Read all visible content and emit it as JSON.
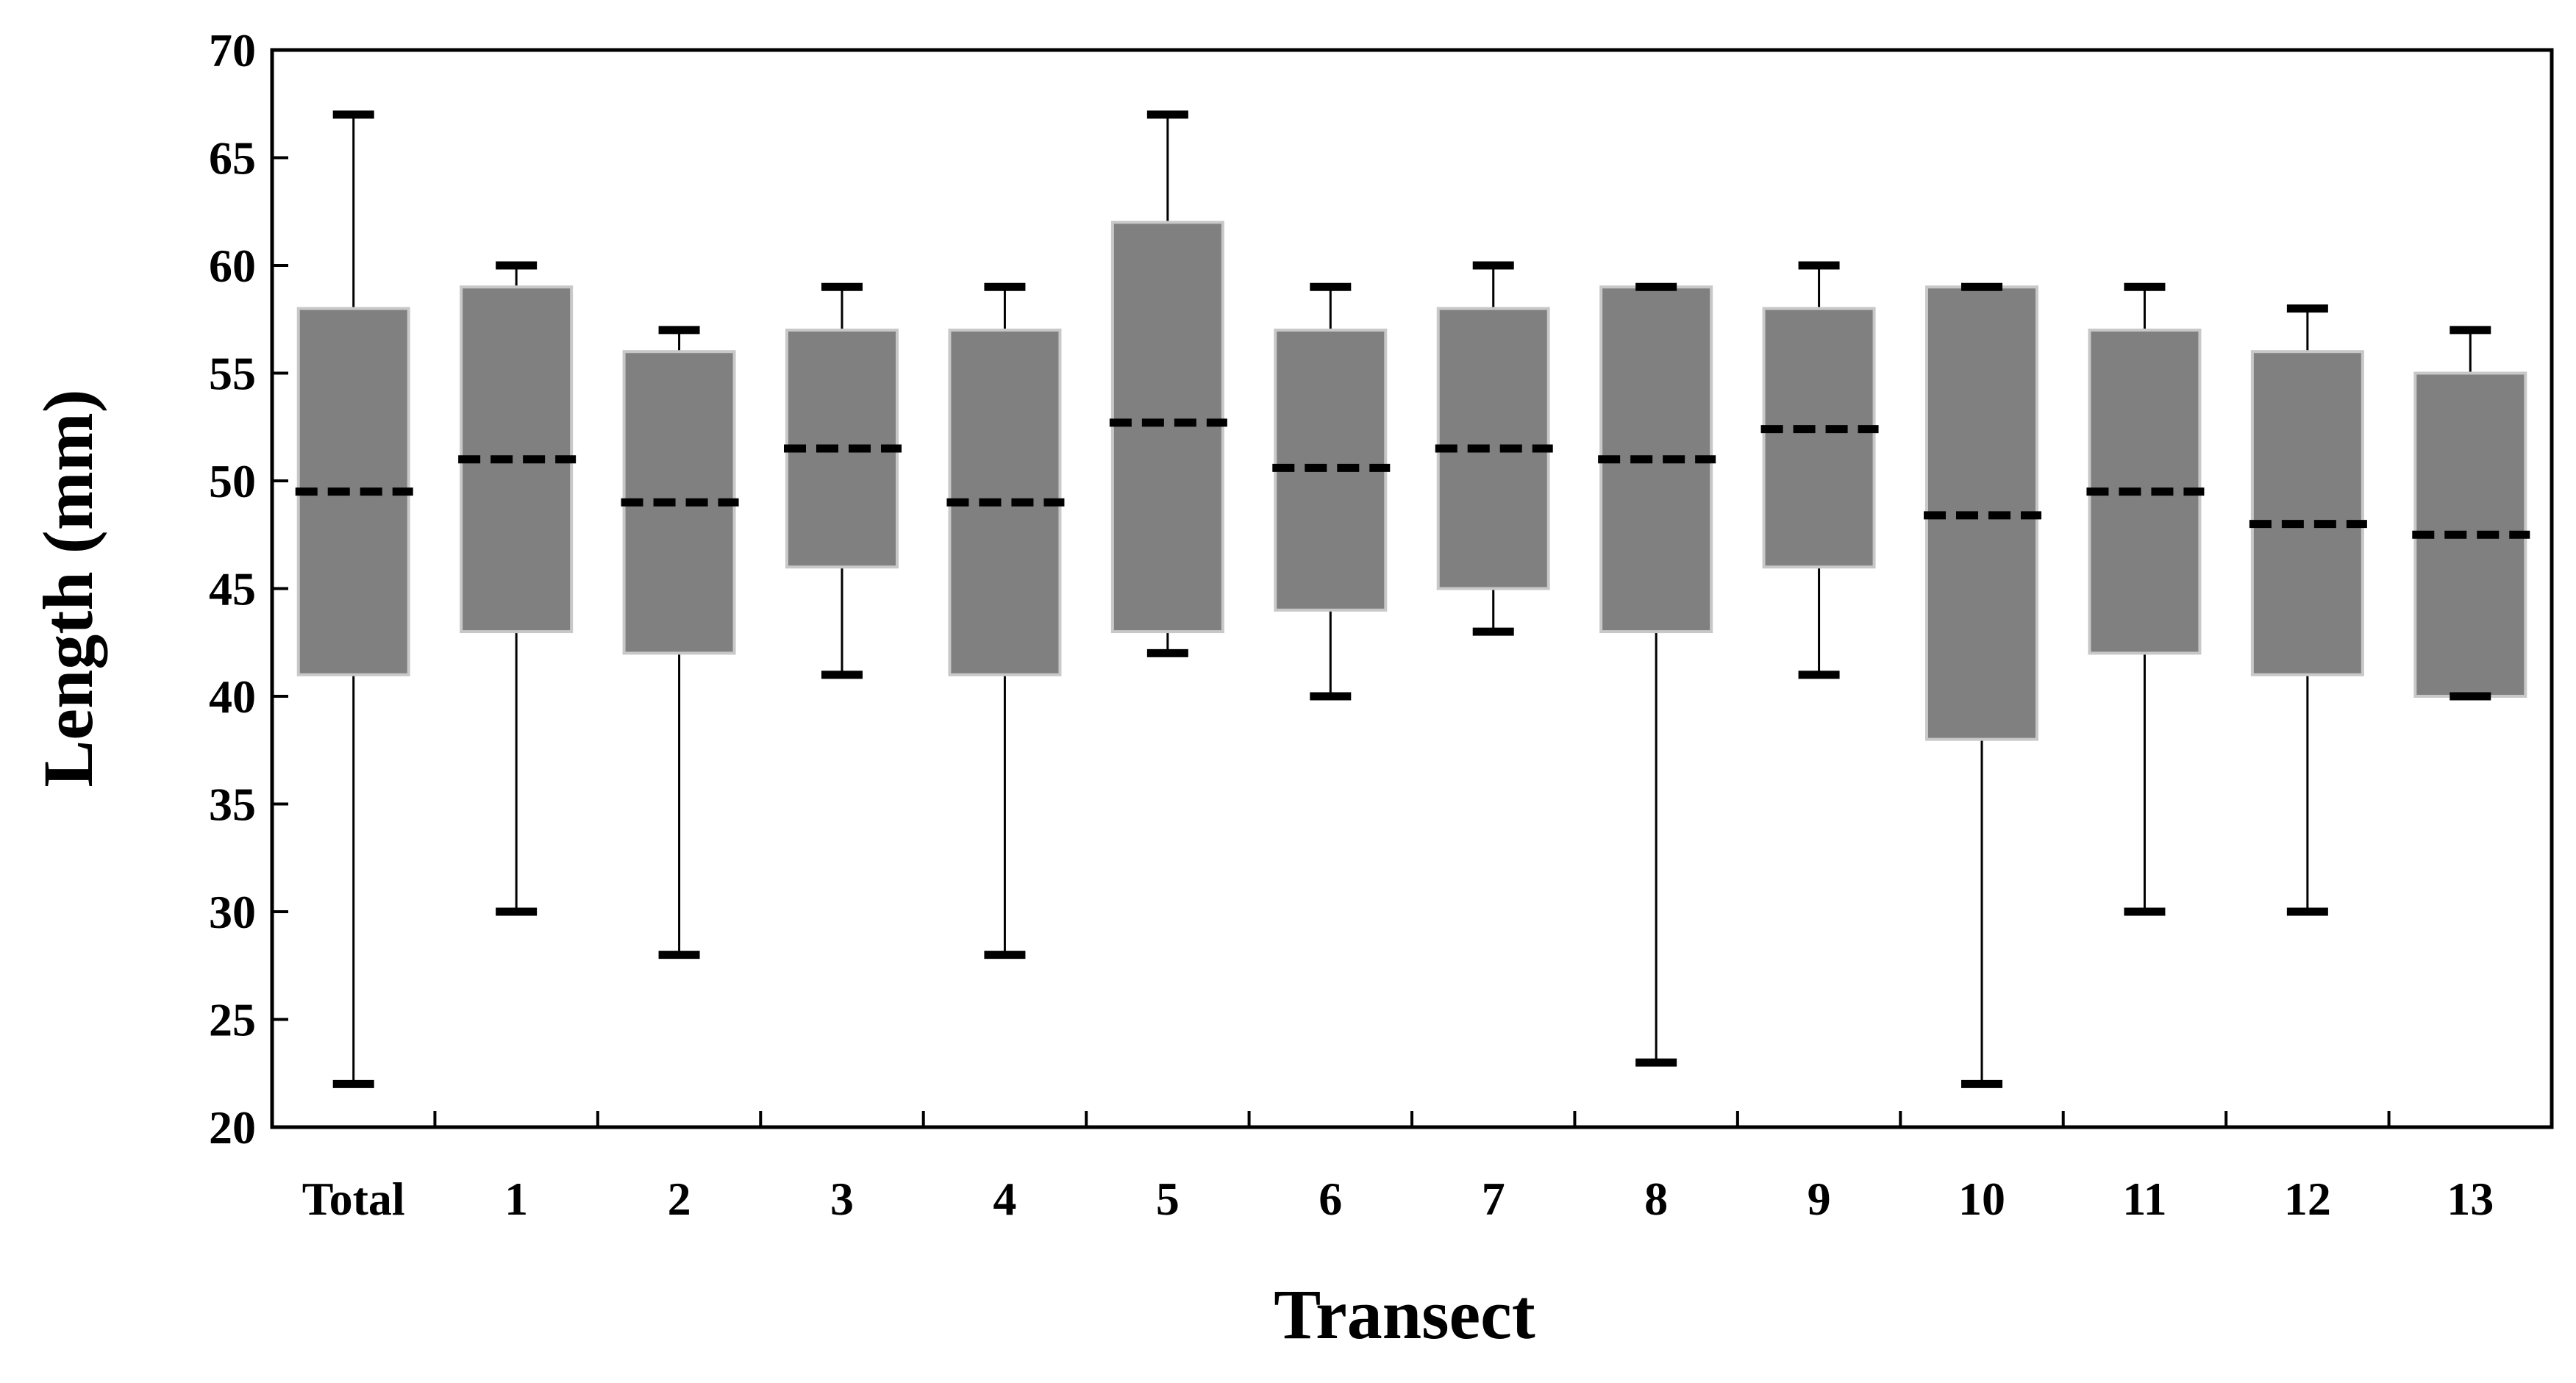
{
  "chart_data": {
    "type": "boxplot",
    "title": "",
    "xlabel": "Transect",
    "ylabel": "Length (mm)",
    "ylim": [
      20,
      70
    ],
    "yticks": [
      20,
      25,
      30,
      35,
      40,
      45,
      50,
      55,
      60,
      65,
      70
    ],
    "grid": false,
    "legend": "none",
    "categories": [
      "Total",
      "1",
      "2",
      "3",
      "4",
      "5",
      "6",
      "7",
      "8",
      "9",
      "10",
      "11",
      "12",
      "13"
    ],
    "boxes": [
      {
        "category": "Total",
        "min": 22,
        "q1": 41,
        "median": 49.5,
        "q3": 58,
        "max": 67
      },
      {
        "category": "1",
        "min": 30,
        "q1": 43,
        "median": 51,
        "q3": 59,
        "max": 60
      },
      {
        "category": "2",
        "min": 28,
        "q1": 42,
        "median": 49,
        "q3": 56,
        "max": 57
      },
      {
        "category": "3",
        "min": 41,
        "q1": 46,
        "median": 51.5,
        "q3": 57,
        "max": 59
      },
      {
        "category": "4",
        "min": 28,
        "q1": 41,
        "median": 49,
        "q3": 57,
        "max": 59
      },
      {
        "category": "5",
        "min": 42,
        "q1": 43,
        "median": 52.7,
        "q3": 62,
        "max": 67
      },
      {
        "category": "6",
        "min": 40,
        "q1": 44,
        "median": 50.6,
        "q3": 57,
        "max": 59
      },
      {
        "category": "7",
        "min": 43,
        "q1": 45,
        "median": 51.5,
        "q3": 58,
        "max": 60
      },
      {
        "category": "8",
        "min": 23,
        "q1": 43,
        "median": 51,
        "q3": 59,
        "max": 59
      },
      {
        "category": "9",
        "min": 41,
        "q1": 46,
        "median": 52.4,
        "q3": 58,
        "max": 60
      },
      {
        "category": "10",
        "min": 22,
        "q1": 38,
        "median": 48.4,
        "q3": 59,
        "max": 59
      },
      {
        "category": "11",
        "min": 30,
        "q1": 42,
        "median": 49.5,
        "q3": 57,
        "max": 59
      },
      {
        "category": "12",
        "min": 30,
        "q1": 41,
        "median": 48,
        "q3": 56,
        "max": 58
      },
      {
        "category": "13",
        "min": 40,
        "q1": 40,
        "median": 47.5,
        "q3": 55,
        "max": 57
      }
    ],
    "colors": {
      "box_fill": "#808080",
      "box_edge": "#c8c8c8",
      "whisker": "#000000",
      "median": "#000000",
      "axis": "#000000"
    }
  }
}
